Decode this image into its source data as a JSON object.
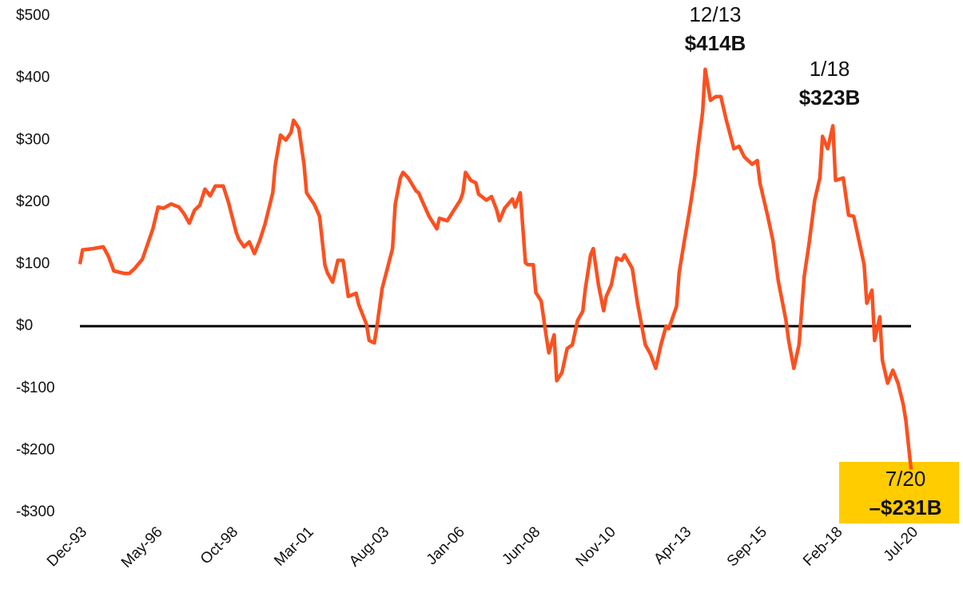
{
  "chart_data": {
    "type": "line",
    "x": [
      "1993-12",
      "1994-01",
      "1994-05",
      "1994-09",
      "1994-11",
      "1995-01",
      "1995-05",
      "1995-07",
      "1995-09",
      "1995-12",
      "1996-04",
      "1996-06",
      "1996-08",
      "1996-11",
      "1997-02",
      "1997-04",
      "1997-06",
      "1997-08",
      "1997-10",
      "1997-12",
      "1998-02",
      "1998-04",
      "1998-07",
      "1998-09",
      "1998-12",
      "1999-01",
      "1999-03",
      "1999-05",
      "1999-07",
      "1999-09",
      "1999-11",
      "2000-02",
      "2000-03",
      "2000-05",
      "2000-07",
      "2000-09",
      "2000-10",
      "2000-12",
      "2001-02",
      "2001-03",
      "2001-06",
      "2001-08",
      "2001-10",
      "2001-11",
      "2002-01",
      "2002-03",
      "2002-05",
      "2002-07",
      "2002-10",
      "2002-11",
      "2003-02",
      "2003-03",
      "2003-05",
      "2003-06",
      "2003-08",
      "2003-10",
      "2003-12",
      "2004-01",
      "2004-03",
      "2004-04",
      "2004-06",
      "2004-09",
      "2004-10",
      "2004-12",
      "2005-02",
      "2005-05",
      "2005-06",
      "2005-09",
      "2005-12",
      "2006-02",
      "2006-03",
      "2006-04",
      "2006-06",
      "2006-08",
      "2006-09",
      "2006-12",
      "2007-02",
      "2007-04",
      "2007-05",
      "2007-07",
      "2007-10",
      "2007-11",
      "2008-01",
      "2008-03",
      "2008-04",
      "2008-06",
      "2008-07",
      "2008-09",
      "2008-11",
      "2008-12",
      "2009-02",
      "2009-03",
      "2009-05",
      "2009-07",
      "2009-09",
      "2009-11",
      "2010-01",
      "2010-02",
      "2010-04",
      "2010-05",
      "2010-07",
      "2010-09",
      "2010-10",
      "2010-12",
      "2011-02",
      "2011-04",
      "2011-05",
      "2011-08",
      "2011-10",
      "2012-01",
      "2012-03",
      "2012-05",
      "2012-07",
      "2012-09",
      "2012-10",
      "2013-01",
      "2013-02",
      "2013-04",
      "2013-06",
      "2013-08",
      "2013-09",
      "2013-11",
      "2013-12",
      "2014-02",
      "2014-04",
      "2014-06",
      "2014-08",
      "2014-11",
      "2015-01",
      "2015-03",
      "2015-06",
      "2015-08",
      "2015-09",
      "2015-12",
      "2016-02",
      "2016-04",
      "2016-07",
      "2016-08",
      "2016-10",
      "2016-12",
      "2017-02",
      "2017-04",
      "2017-06",
      "2017-08",
      "2017-09",
      "2017-11",
      "2018-01",
      "2018-02",
      "2018-05",
      "2018-07",
      "2018-09",
      "2018-11",
      "2019-01",
      "2019-02",
      "2019-04",
      "2019-05",
      "2019-07",
      "2019-08",
      "2019-10",
      "2019-12",
      "2020-02",
      "2020-04",
      "2020-05",
      "2020-07"
    ],
    "series": [
      {
        "color": "#fc5020",
        "values": [
          100,
          123,
          125,
          128,
          112,
          89,
          85,
          85,
          93,
          108,
          157,
          192,
          190,
          197,
          192,
          181,
          166,
          187,
          195,
          221,
          210,
          226,
          226,
          200,
          151,
          140,
          128,
          136,
          117,
          138,
          164,
          215,
          260,
          308,
          300,
          312,
          332,
          319,
          261,
          215,
          196,
          177,
          99,
          86,
          71,
          106,
          106,
          48,
          53,
          35,
          3,
          -23,
          -27,
          0,
          61,
          93,
          125,
          196,
          239,
          248,
          239,
          218,
          215,
          196,
          177,
          157,
          174,
          170,
          190,
          203,
          215,
          248,
          235,
          231,
          213,
          203,
          209,
          187,
          170,
          190,
          205,
          192,
          215,
          102,
          99,
          99,
          54,
          41,
          -17,
          -43,
          -14,
          -88,
          -75,
          -36,
          -30,
          9,
          24,
          61,
          115,
          125,
          67,
          25,
          48,
          67,
          110,
          106,
          115,
          93,
          37,
          -30,
          -45,
          -68,
          -30,
          0,
          -4,
          32,
          86,
          138,
          187,
          241,
          280,
          345,
          414,
          364,
          370,
          370,
          334,
          286,
          290,
          273,
          261,
          267,
          231,
          177,
          138,
          74,
          9,
          -23,
          -68,
          -30,
          80,
          138,
          203,
          239,
          306,
          286,
          323,
          235,
          239,
          179,
          177,
          138,
          99,
          37,
          58,
          -23,
          15,
          -55,
          -92,
          -71,
          -92,
          -126,
          -152,
          -231
        ]
      }
    ],
    "xlim": [
      "1993-12",
      "2020-07"
    ],
    "xticks": [
      {
        "value": "1993-12",
        "label": "Dec-93"
      },
      {
        "value": "1996-05",
        "label": "May-96"
      },
      {
        "value": "1998-10",
        "label": "Oct-98"
      },
      {
        "value": "2001-03",
        "label": "Mar-01"
      },
      {
        "value": "2003-08",
        "label": "Aug-03"
      },
      {
        "value": "2006-01",
        "label": "Jan-06"
      },
      {
        "value": "2008-06",
        "label": "Jun-08"
      },
      {
        "value": "2010-11",
        "label": "Nov-10"
      },
      {
        "value": "2013-04",
        "label": "Apr-13"
      },
      {
        "value": "2015-09",
        "label": "Sep-15"
      },
      {
        "value": "2018-02",
        "label": "Feb-18"
      },
      {
        "value": "2020-07",
        "label": "Jul-20"
      }
    ],
    "ylim": [
      -300,
      500
    ],
    "yticks": [
      {
        "value": -300,
        "label": "-$300"
      },
      {
        "value": -200,
        "label": "-$200"
      },
      {
        "value": -100,
        "label": "-$100"
      },
      {
        "value": 0,
        "label": "$0"
      },
      {
        "value": 100,
        "label": "$100"
      },
      {
        "value": 200,
        "label": "$200"
      },
      {
        "value": 300,
        "label": "$300"
      },
      {
        "value": 400,
        "label": "$400"
      },
      {
        "value": 500,
        "label": "$500"
      }
    ],
    "annotations": [
      {
        "date": "12/13",
        "text": "$414B"
      },
      {
        "date": "1/18",
        "text": "$323B"
      },
      {
        "date": "7/20",
        "text": "–$231B"
      }
    ]
  }
}
